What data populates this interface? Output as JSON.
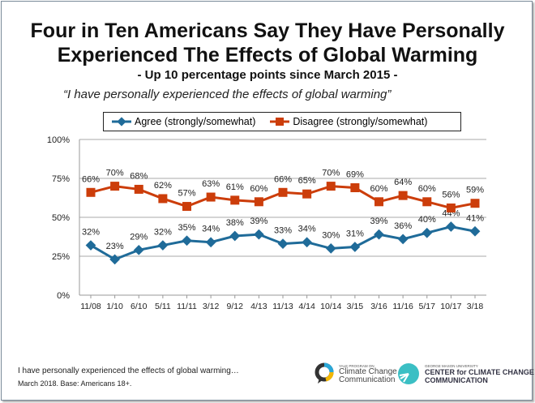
{
  "title_line1": "Four in Ten Americans Say They Have Personally",
  "title_line2": "Experienced The Effects of Global Warming",
  "subtitle": "- Up 10 percentage points since March 2015 -",
  "quote": "“I have personally experienced the effects of global warming”",
  "footnote1": "I have personally experienced the effects of global warming…",
  "footnote2": "March 2018. Base: Americans 18+.",
  "logos": {
    "yale_small": "YALE PROGRAM ON",
    "yale_line1": "Climate Change",
    "yale_line2": "Communication",
    "gmu_small": "GEORGE MASON UNIVERSITY",
    "gmu_line1": "CENTER for CLIMATE CHANGE",
    "gmu_line2": "COMMUNICATION"
  },
  "chart_data": {
    "type": "line",
    "categories": [
      "11/08",
      "1/10",
      "6/10",
      "5/11",
      "11/11",
      "3/12",
      "9/12",
      "4/13",
      "11/13",
      "4/14",
      "10/14",
      "3/15",
      "3/16",
      "11/16",
      "5/17",
      "10/17",
      "3/18"
    ],
    "ylim": [
      0,
      100
    ],
    "yticks": [
      "0%",
      "25%",
      "50%",
      "75%",
      "100%"
    ],
    "grid": true,
    "legend_position": "top",
    "series": [
      {
        "name": "Agree (strongly/somewhat)",
        "color": "#1f6b99",
        "marker": "diamond",
        "values": [
          32,
          23,
          29,
          32,
          35,
          34,
          38,
          39,
          33,
          34,
          30,
          31,
          39,
          36,
          40,
          44,
          41
        ]
      },
      {
        "name": "Disagree (strongly/somewhat)",
        "color": "#cc3d0a",
        "marker": "square",
        "values": [
          66,
          70,
          68,
          62,
          57,
          63,
          61,
          60,
          66,
          65,
          70,
          69,
          60,
          64,
          60,
          56,
          59
        ]
      }
    ]
  }
}
